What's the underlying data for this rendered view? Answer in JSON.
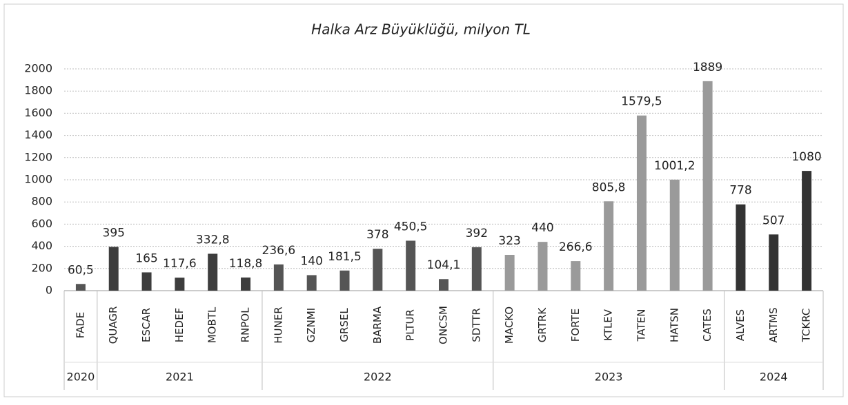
{
  "chart_data": {
    "type": "bar",
    "title": "Halka Arz Büyüklüğü, milyon TL",
    "ylim": [
      0,
      2000
    ],
    "yticks": [
      0,
      200,
      400,
      600,
      800,
      1000,
      1200,
      1400,
      1600,
      1800,
      2000
    ],
    "grid": true,
    "groups": [
      {
        "name": "2020",
        "color": "#555555",
        "categories": [
          "FADE"
        ],
        "values": [
          60.5
        ],
        "value_labels": [
          "60,5"
        ]
      },
      {
        "name": "2021",
        "color": "#3d3d3d",
        "categories": [
          "QUAGR",
          "ESCAR",
          "HEDEF",
          "MOBTL",
          "RNPOL"
        ],
        "values": [
          395,
          165,
          117.6,
          332.8,
          118.8
        ],
        "value_labels": [
          "395",
          "165",
          "117,6",
          "332,8",
          "118,8"
        ]
      },
      {
        "name": "2022",
        "color": "#555555",
        "categories": [
          "HUNER",
          "GZNMI",
          "GRSEL",
          "BARMA",
          "PLTUR",
          "ONCSM",
          "SDTTR"
        ],
        "values": [
          236.6,
          140,
          181.5,
          378,
          450.5,
          104.1,
          392
        ],
        "value_labels": [
          "236,6",
          "140",
          "181,5",
          "378",
          "450,5",
          "104,1",
          "392"
        ]
      },
      {
        "name": "2023",
        "color": "#9a9a9a",
        "categories": [
          "MACKO",
          "GRTRK",
          "FORTE",
          "KTLEV",
          "TATEN",
          "HATSN",
          "CATES"
        ],
        "values": [
          323,
          440,
          266.6,
          805.8,
          1579.5,
          1001.2,
          1889
        ],
        "value_labels": [
          "323",
          "440",
          "266,6",
          "805,8",
          "1579,5",
          "1001,2",
          "1889"
        ]
      },
      {
        "name": "2024",
        "color": "#333333",
        "categories": [
          "ALVES",
          "ARTMS",
          "TCKRC"
        ],
        "values": [
          778,
          507,
          1080
        ],
        "value_labels": [
          "778",
          "507",
          "1080"
        ]
      }
    ]
  }
}
